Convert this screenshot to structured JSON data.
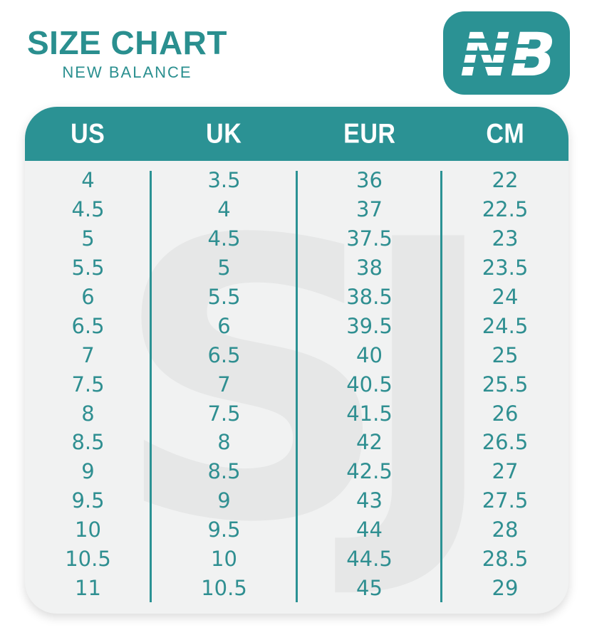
{
  "colors": {
    "accent": "#2b9294",
    "title_text": "#2a8f8f",
    "number_text": "#2f8f91",
    "header_text": "#ffffff",
    "body_bg": "#f1f2f2",
    "watermark": "#e6e7e7",
    "page_bg": "#ffffff"
  },
  "header": {
    "title": "SIZE CHART",
    "subtitle": "NEW BALANCE",
    "logo_icon": "new-balance-nb-logo",
    "logo_letters": "NB"
  },
  "watermark": {
    "text": "SJ"
  },
  "table": {
    "columns": [
      "US",
      "UK",
      "EUR",
      "CM"
    ],
    "rows": [
      [
        "4",
        "3.5",
        "36",
        "22"
      ],
      [
        "4.5",
        "4",
        "37",
        "22.5"
      ],
      [
        "5",
        "4.5",
        "37.5",
        "23"
      ],
      [
        "5.5",
        "5",
        "38",
        "23.5"
      ],
      [
        "6",
        "5.5",
        "38.5",
        "24"
      ],
      [
        "6.5",
        "6",
        "39.5",
        "24.5"
      ],
      [
        "7",
        "6.5",
        "40",
        "25"
      ],
      [
        "7.5",
        "7",
        "40.5",
        "25.5"
      ],
      [
        "8",
        "7.5",
        "41.5",
        "26"
      ],
      [
        "8.5",
        "8",
        "42",
        "26.5"
      ],
      [
        "9",
        "8.5",
        "42.5",
        "27"
      ],
      [
        "9.5",
        "9",
        "43",
        "27.5"
      ],
      [
        "10",
        "9.5",
        "44",
        "28"
      ],
      [
        "10.5",
        "10",
        "44.5",
        "28.5"
      ],
      [
        "11",
        "10.5",
        "45",
        "29"
      ]
    ]
  },
  "chart_data": {
    "type": "table",
    "title": "SIZE CHART",
    "subtitle": "NEW BALANCE",
    "columns": [
      "US",
      "UK",
      "EUR",
      "CM"
    ],
    "rows": [
      [
        4,
        3.5,
        36,
        22
      ],
      [
        4.5,
        4,
        37,
        22.5
      ],
      [
        5,
        4.5,
        37.5,
        23
      ],
      [
        5.5,
        5,
        38,
        23.5
      ],
      [
        6,
        5.5,
        38.5,
        24
      ],
      [
        6.5,
        6,
        39.5,
        24.5
      ],
      [
        7,
        6.5,
        40,
        25
      ],
      [
        7.5,
        7,
        40.5,
        25.5
      ],
      [
        8,
        7.5,
        41.5,
        26
      ],
      [
        8.5,
        8,
        42,
        26.5
      ],
      [
        9,
        8.5,
        42.5,
        27
      ],
      [
        9.5,
        9,
        43,
        27.5
      ],
      [
        10,
        9.5,
        44,
        28
      ],
      [
        10.5,
        10,
        44.5,
        28.5
      ],
      [
        11,
        10.5,
        45,
        29
      ]
    ]
  }
}
